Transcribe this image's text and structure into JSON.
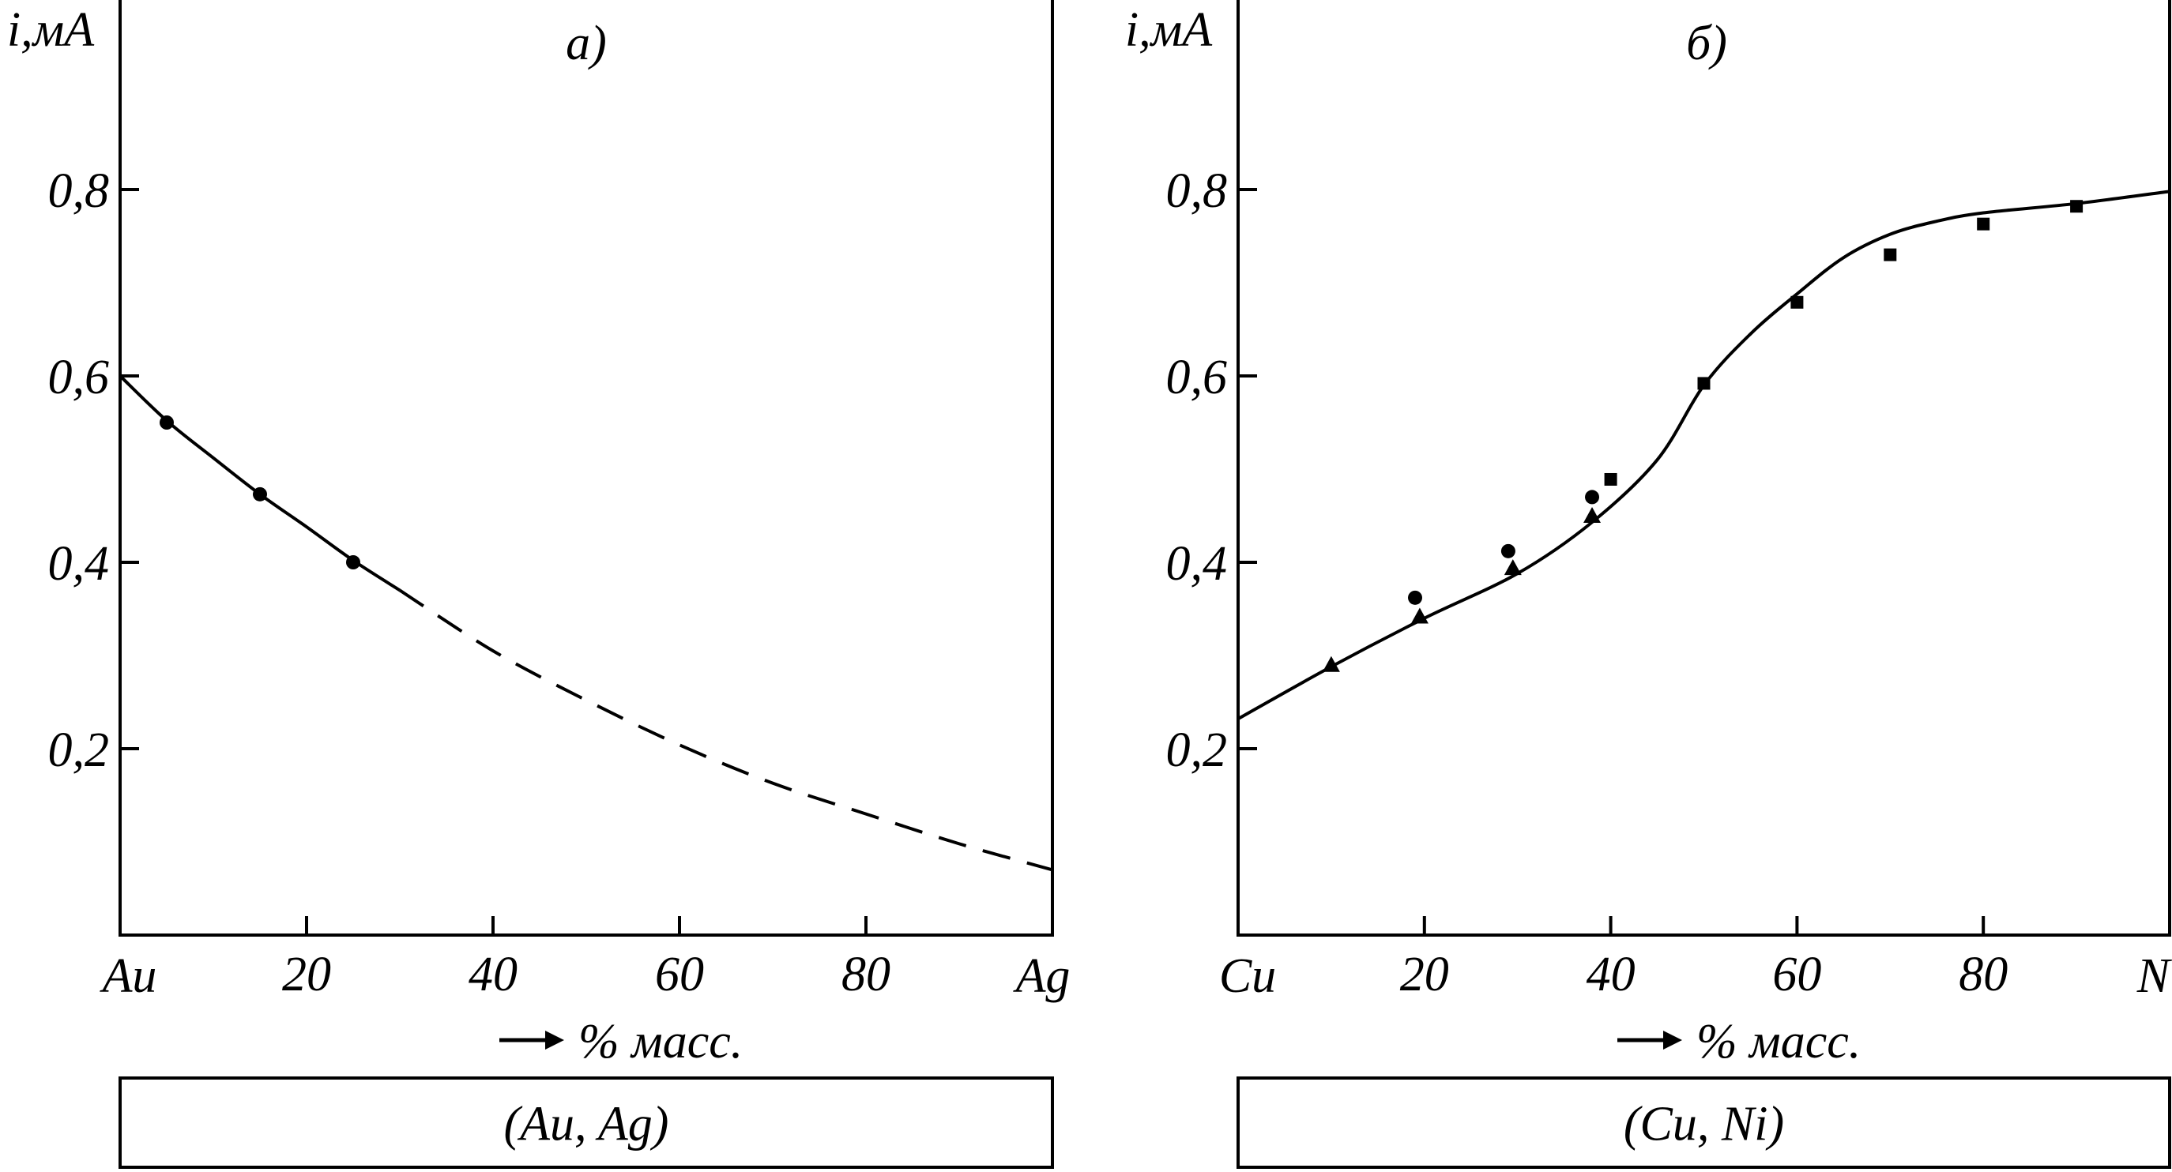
{
  "chart_data": [
    {
      "type": "line",
      "subplot_label": "а)",
      "ylabel": "i,мА",
      "xlabel": "% масс.",
      "x_end_labels": [
        "Au",
        "Ag"
      ],
      "x_ticks": [
        "20",
        "40",
        "60",
        "80"
      ],
      "y_ticks": [
        "0,2",
        "0,4",
        "0,6",
        "0,8"
      ],
      "xlim": [
        0,
        100
      ],
      "ylim": [
        0,
        1.0
      ],
      "caption": "(Au, Ag)",
      "series": [
        {
          "style": "solid",
          "x": [
            0,
            5,
            10,
            15,
            20,
            25,
            30
          ],
          "y": [
            0.6,
            0.552,
            0.512,
            0.473,
            0.438,
            0.402,
            0.37
          ]
        },
        {
          "style": "dashed",
          "x": [
            30,
            40,
            50,
            60,
            70,
            80,
            90,
            100
          ],
          "y": [
            0.37,
            0.305,
            0.252,
            0.204,
            0.163,
            0.13,
            0.098,
            0.07
          ]
        },
        {
          "marker": "circle",
          "x": [
            5,
            15,
            25
          ],
          "y": [
            0.55,
            0.473,
            0.4
          ]
        }
      ]
    },
    {
      "type": "line",
      "subplot_label": "б)",
      "ylabel": "i,мА",
      "xlabel": "% масс.",
      "x_end_labels": [
        "Cu",
        "Ni"
      ],
      "x_ticks": [
        "20",
        "40",
        "60",
        "80"
      ],
      "y_ticks": [
        "0,2",
        "0,4",
        "0,6",
        "0,8"
      ],
      "xlim": [
        0,
        100
      ],
      "ylim": [
        0,
        1.0
      ],
      "caption": "(Cu, Ni)",
      "series": [
        {
          "style": "solid",
          "x": [
            0,
            10,
            20,
            30,
            38,
            45,
            50,
            55,
            60,
            65,
            70,
            75,
            80,
            90,
            100
          ],
          "y": [
            0.232,
            0.288,
            0.34,
            0.388,
            0.443,
            0.51,
            0.59,
            0.645,
            0.688,
            0.727,
            0.752,
            0.766,
            0.775,
            0.785,
            0.798
          ]
        },
        {
          "marker": "triangle",
          "x": [
            10,
            19.5,
            29.5,
            38
          ],
          "y": [
            0.29,
            0.342,
            0.394,
            0.45
          ]
        },
        {
          "marker": "circle",
          "x": [
            19,
            29,
            38
          ],
          "y": [
            0.362,
            0.412,
            0.47
          ]
        },
        {
          "marker": "square",
          "x": [
            40,
            50,
            60,
            70,
            80,
            90
          ],
          "y": [
            0.489,
            0.592,
            0.679,
            0.73,
            0.763,
            0.782
          ]
        }
      ]
    }
  ]
}
